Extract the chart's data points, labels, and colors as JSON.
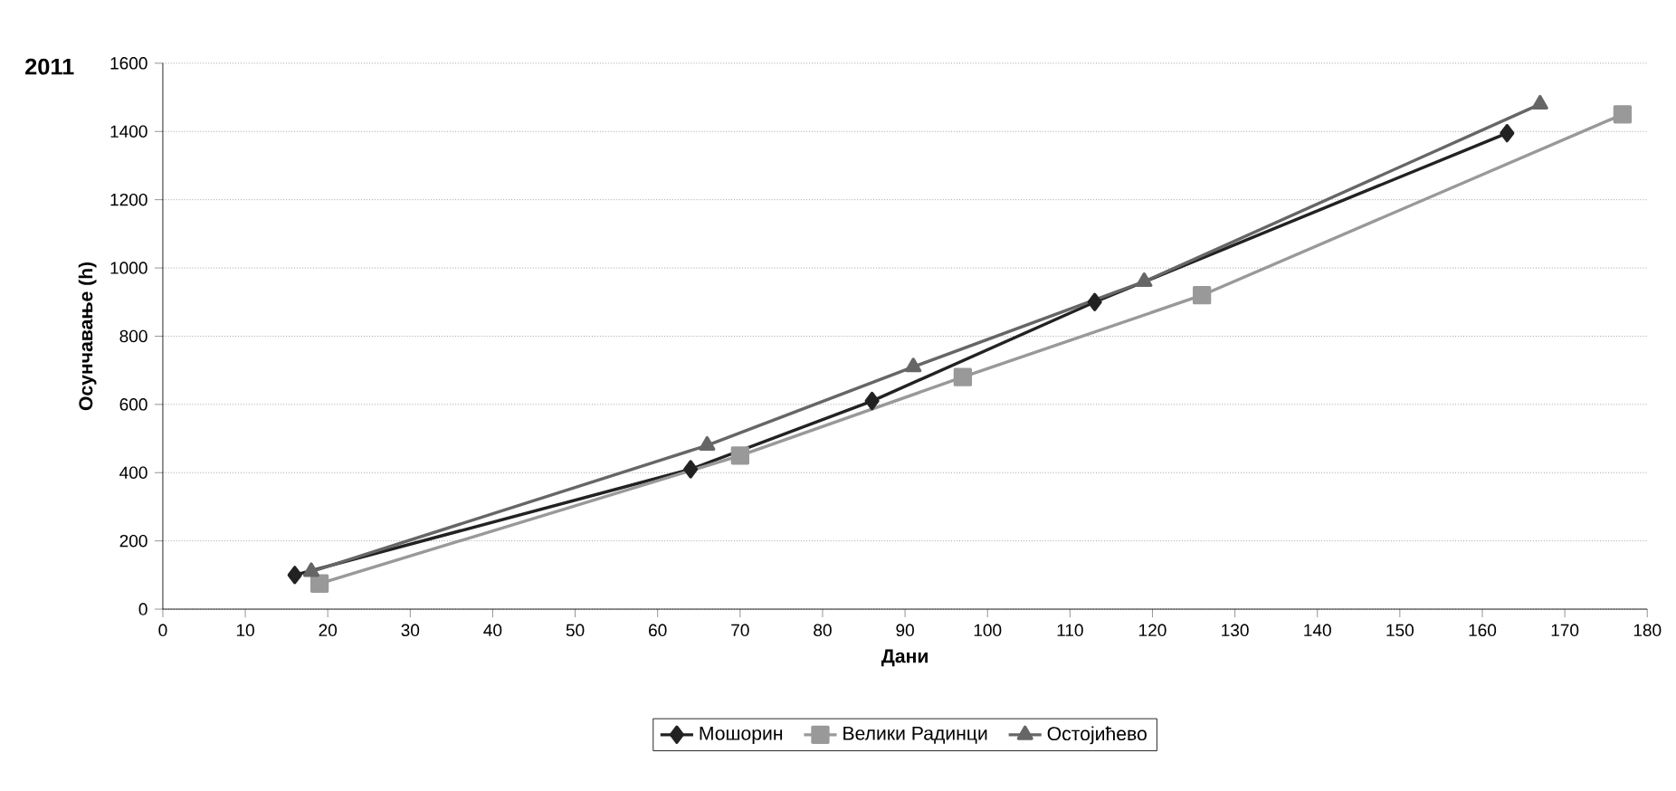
{
  "chart_data": {
    "type": "line",
    "title": "2011",
    "xlabel": "Дани",
    "ylabel": "Осунчавање (h)",
    "xlim": [
      0,
      180
    ],
    "xticks": [
      0,
      10,
      20,
      30,
      40,
      50,
      60,
      70,
      80,
      90,
      100,
      110,
      120,
      130,
      140,
      150,
      160,
      170,
      180
    ],
    "ylim": [
      0,
      1600
    ],
    "yticks": [
      0,
      200,
      400,
      600,
      800,
      1000,
      1200,
      1400,
      1600
    ],
    "grid": "y",
    "legend": "bottom",
    "series": [
      {
        "name": "Мошорин",
        "color": "#222222",
        "marker": "diamond",
        "x": [
          16,
          64,
          86,
          113,
          163
        ],
        "values": [
          100,
          410,
          610,
          900,
          1395
        ]
      },
      {
        "name": "Велики Радинци",
        "color": "#999999",
        "marker": "square",
        "x": [
          19,
          70,
          97,
          126,
          177
        ],
        "values": [
          75,
          450,
          680,
          920,
          1450
        ]
      },
      {
        "name": "Остојићево",
        "color": "#666666",
        "marker": "triangle",
        "x": [
          18,
          66,
          91,
          119,
          167
        ],
        "values": [
          110,
          480,
          710,
          960,
          1480
        ]
      }
    ]
  }
}
